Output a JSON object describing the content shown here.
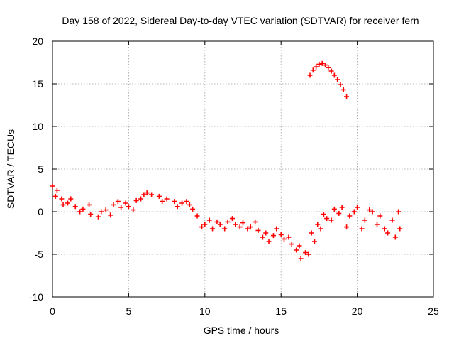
{
  "chart_data": {
    "type": "scatter",
    "title": "Day 158 of 2022, Sidereal Day-to-day VTEC variation (SDTVAR) for receiver fern",
    "xlabel": "GPS time / hours",
    "ylabel": "SDTVAR / TECUs",
    "xlim": [
      0,
      25
    ],
    "ylim": [
      -10,
      20
    ],
    "xticks": [
      0,
      5,
      10,
      15,
      20,
      25
    ],
    "yticks": [
      -10,
      -5,
      0,
      5,
      10,
      15,
      20
    ],
    "xtick_labels": [
      "0",
      "5",
      "10",
      "15",
      "20",
      "25"
    ],
    "ytick_labels": [
      "-10",
      "-5",
      "0",
      "5",
      "10",
      "15",
      "20"
    ],
    "grid": true,
    "legend": "none",
    "marker": "+",
    "color": "#ff0000",
    "series": [
      {
        "name": "main track",
        "points": [
          [
            0.0,
            3.0
          ],
          [
            0.3,
            2.5
          ],
          [
            0.6,
            1.5
          ],
          [
            1.0,
            1.0
          ],
          [
            1.5,
            0.6
          ],
          [
            2.0,
            0.3
          ],
          [
            2.5,
            -0.3
          ],
          [
            3.0,
            -0.6
          ],
          [
            3.5,
            0.2
          ],
          [
            4.0,
            0.8
          ],
          [
            4.5,
            0.5
          ],
          [
            5.0,
            0.6
          ],
          [
            5.5,
            1.3
          ],
          [
            6.0,
            2.0
          ],
          [
            6.5,
            2.0
          ],
          [
            7.0,
            1.8
          ],
          [
            7.5,
            1.5
          ],
          [
            8.0,
            1.2
          ],
          [
            8.5,
            1.0
          ],
          [
            9.0,
            0.8
          ],
          [
            9.5,
            -0.5
          ],
          [
            10.0,
            -1.5
          ],
          [
            10.5,
            -2.0
          ],
          [
            11.0,
            -1.5
          ],
          [
            11.5,
            -1.2
          ],
          [
            12.0,
            -1.5
          ],
          [
            12.5,
            -1.3
          ],
          [
            13.0,
            -1.8
          ],
          [
            13.5,
            -2.2
          ],
          [
            14.0,
            -2.5
          ],
          [
            14.5,
            -2.8
          ],
          [
            15.0,
            -2.7
          ],
          [
            15.5,
            -3.0
          ],
          [
            16.0,
            -4.5
          ],
          [
            16.3,
            -5.5
          ],
          [
            16.8,
            -5.0
          ],
          [
            17.2,
            -3.5
          ],
          [
            17.6,
            -2.0
          ],
          [
            18.0,
            -0.8
          ],
          [
            18.5,
            0.3
          ],
          [
            19.0,
            0.5
          ],
          [
            19.5,
            -0.5
          ],
          [
            20.0,
            0.5
          ],
          [
            20.5,
            -1.0
          ],
          [
            21.0,
            0.0
          ],
          [
            21.5,
            -0.5
          ],
          [
            22.0,
            -2.5
          ],
          [
            22.5,
            -3.0
          ],
          [
            22.8,
            -2.0
          ]
        ]
      },
      {
        "name": "secondary tracks",
        "points": [
          [
            0.2,
            1.8
          ],
          [
            0.7,
            0.8
          ],
          [
            1.2,
            1.5
          ],
          [
            1.8,
            0.0
          ],
          [
            2.4,
            0.8
          ],
          [
            3.2,
            0.0
          ],
          [
            3.8,
            -0.4
          ],
          [
            4.3,
            1.2
          ],
          [
            4.8,
            1.0
          ],
          [
            5.3,
            0.2
          ],
          [
            5.8,
            1.5
          ],
          [
            6.2,
            2.2
          ],
          [
            7.2,
            1.2
          ],
          [
            8.2,
            0.6
          ],
          [
            8.8,
            1.2
          ],
          [
            9.2,
            0.3
          ],
          [
            9.8,
            -1.8
          ],
          [
            10.3,
            -1.0
          ],
          [
            10.8,
            -1.2
          ],
          [
            11.3,
            -2.0
          ],
          [
            11.8,
            -0.8
          ],
          [
            12.3,
            -1.8
          ],
          [
            12.8,
            -2.0
          ],
          [
            13.3,
            -1.2
          ],
          [
            13.8,
            -3.0
          ],
          [
            14.2,
            -3.5
          ],
          [
            14.7,
            -2.0
          ],
          [
            15.2,
            -3.2
          ],
          [
            15.7,
            -3.8
          ],
          [
            16.2,
            -4.0
          ],
          [
            16.6,
            -4.8
          ],
          [
            17.0,
            -2.5
          ],
          [
            17.4,
            -1.5
          ],
          [
            17.8,
            -0.3
          ],
          [
            18.3,
            -1.0
          ],
          [
            18.8,
            -0.2
          ],
          [
            19.3,
            -1.8
          ],
          [
            19.8,
            0.0
          ],
          [
            20.3,
            -2.0
          ],
          [
            20.8,
            0.2
          ],
          [
            21.3,
            -1.5
          ],
          [
            21.8,
            -2.0
          ],
          [
            22.3,
            -1.0
          ],
          [
            22.7,
            0.0
          ]
        ]
      },
      {
        "name": "upper arc",
        "points": [
          [
            16.9,
            16.0
          ],
          [
            17.1,
            16.6
          ],
          [
            17.3,
            17.0
          ],
          [
            17.5,
            17.3
          ],
          [
            17.7,
            17.4
          ],
          [
            17.9,
            17.2
          ],
          [
            18.1,
            16.9
          ],
          [
            18.3,
            16.5
          ],
          [
            18.5,
            16.0
          ],
          [
            18.7,
            15.5
          ],
          [
            18.9,
            14.9
          ],
          [
            19.1,
            14.3
          ],
          [
            19.3,
            13.5
          ]
        ]
      }
    ]
  }
}
